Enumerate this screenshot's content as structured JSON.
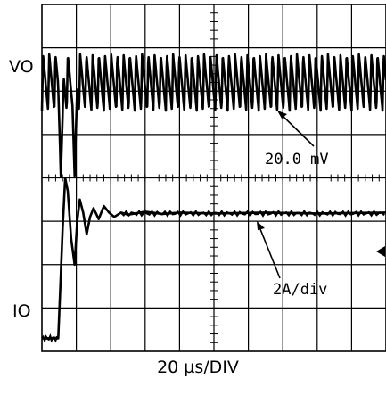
{
  "chart_data": {
    "type": "line",
    "title": "",
    "xlabel": "20 µs/DIV",
    "grid": true,
    "grid_divisions": {
      "x": 10,
      "y": 8
    },
    "x_range_us": [
      0,
      200
    ],
    "series": [
      {
        "name": "VO",
        "channel_label": "VO",
        "scale_label": "20.0 mV",
        "description_values_div": {
          "steady_level_div": 6.2,
          "ripple_peak_to_peak_div": 1.3,
          "ripple_period_us": 3.6,
          "dips": [
            {
              "t_us": 11,
              "min_div": 4.05
            },
            {
              "t_us": 19,
              "min_div": 4.05
            }
          ]
        }
      },
      {
        "name": "IO",
        "channel_label": "IO",
        "scale_label": "2A/div",
        "x_us": [
          0,
          9.5,
          10.5,
          12,
          13.5,
          15,
          17,
          19,
          20.5,
          22,
          24,
          26,
          28,
          30,
          33,
          36,
          39,
          42,
          46,
          50,
          60,
          70,
          80,
          100,
          130,
          160,
          200
        ],
        "y_div": [
          0.3,
          0.3,
          1.3,
          2.8,
          4.0,
          3.7,
          2.6,
          2.0,
          3.0,
          3.5,
          3.2,
          2.7,
          3.1,
          3.3,
          3.05,
          3.35,
          3.2,
          3.1,
          3.2,
          3.15,
          3.22,
          3.17,
          3.2,
          3.18,
          3.2,
          3.18,
          3.2
        ]
      }
    ]
  }
}
